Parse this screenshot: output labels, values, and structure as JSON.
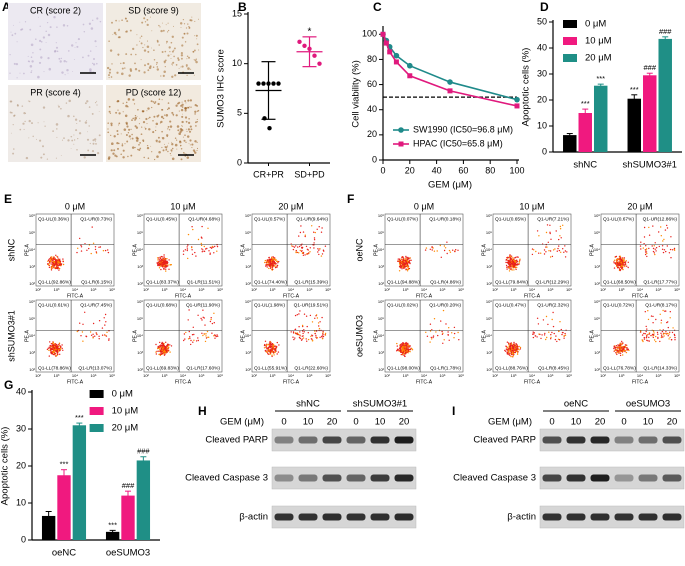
{
  "ihc": {
    "panel": "A",
    "tiles": [
      "CR (score 2)",
      "SD (score 9)",
      "PR (score 4)",
      "PD (score 12)"
    ]
  },
  "chart_data": [
    {
      "panel": "B",
      "type": "dotplot",
      "ylabel": "SUMO3 IHC score",
      "categories": [
        "CR+PR",
        "SD+PD"
      ],
      "colors": [
        "#000000",
        "#e0197d"
      ],
      "points": [
        [
          8,
          8,
          8,
          8,
          8,
          4.5,
          3.5
        ],
        [
          12.2,
          11.8,
          11.5,
          10.8,
          10
        ]
      ],
      "mean": [
        7.3,
        11.2
      ],
      "sd": [
        2.9,
        1.5
      ],
      "annotations": [
        null,
        "*"
      ],
      "ylim": [
        0,
        15
      ],
      "yticks": [
        0,
        5,
        10,
        15
      ]
    },
    {
      "panel": "C",
      "type": "line",
      "xlabel": "GEM (μM)",
      "ylabel": "Cell viability (%)",
      "x": [
        0,
        2.5,
        5,
        10,
        20,
        50,
        100
      ],
      "series": [
        {
          "name": "SW1990 (IC50=96.8 μM)",
          "color": "#1f8a8a",
          "marker": "circle",
          "values": [
            100,
            95,
            90,
            83,
            75,
            62,
            48
          ]
        },
        {
          "name": "HPAC (IC50=65.8 μM)",
          "color": "#e0197d",
          "marker": "square",
          "values": [
            100,
            93,
            86,
            78,
            67,
            55,
            43
          ]
        }
      ],
      "reference_line": 50,
      "xlim": [
        0,
        100
      ],
      "xticks": [
        0,
        20,
        40,
        60,
        80,
        100
      ],
      "ylim": [
        0,
        105
      ],
      "yticks": [
        0,
        20,
        40,
        60,
        80,
        100
      ],
      "legend": "lower center"
    },
    {
      "panel": "D",
      "type": "bar",
      "ylabel": "Apoptotic cells (%)",
      "categories": [
        "shNC",
        "shSUMO3#1"
      ],
      "series": [
        {
          "name": "0 μM",
          "color": "#000000",
          "values": [
            6.5,
            20.5
          ],
          "errors": [
            0.6,
            1.5
          ],
          "annotations": [
            null,
            "***"
          ]
        },
        {
          "name": "10 μM",
          "color": "#f0197f",
          "values": [
            15,
            29.5
          ],
          "errors": [
            1.5,
            0.8
          ],
          "annotations": [
            "***",
            "###"
          ]
        },
        {
          "name": "20 μM",
          "color": "#1f8f86",
          "values": [
            25.5,
            43.5
          ],
          "errors": [
            0.6,
            0.8
          ],
          "annotations": [
            "***",
            "###"
          ]
        }
      ],
      "ylim": [
        0,
        50
      ],
      "yticks": [
        0,
        10,
        20,
        30,
        40,
        50
      ],
      "legend": "upper left"
    },
    {
      "panel": "G",
      "type": "bar",
      "ylabel": "Apoptotic cells (%)",
      "categories": [
        "oeNC",
        "oeSUMO3"
      ],
      "series": [
        {
          "name": "0 μM",
          "color": "#000000",
          "values": [
            6.5,
            2.2
          ],
          "errors": [
            1.2,
            0.4
          ],
          "annotations": [
            null,
            "***"
          ]
        },
        {
          "name": "10 μM",
          "color": "#f0197f",
          "values": [
            17.5,
            12
          ],
          "errors": [
            1.5,
            1.2
          ],
          "annotations": [
            "***",
            "###"
          ]
        },
        {
          "name": "20 μM",
          "color": "#1f8f86",
          "values": [
            31,
            21.5
          ],
          "errors": [
            0.6,
            1
          ],
          "annotations": [
            "***",
            "###"
          ]
        }
      ],
      "ylim": [
        0,
        40
      ],
      "yticks": [
        0,
        10,
        20,
        30,
        40
      ],
      "legend": "upper right"
    }
  ],
  "flow": [
    {
      "panel": "E",
      "row_labels": [
        "shNC",
        "shSUMO3#1"
      ],
      "col_labels": [
        "0 μM",
        "10 μM",
        "20 μM"
      ],
      "x_axis": "FITC-A",
      "y_axis": "PE-A",
      "ticks": [
        "10²",
        "10³",
        "10⁴",
        "10⁵",
        "10⁶"
      ],
      "plots": [
        [
          {
            "ul": "Q1-UL(0.36%)",
            "ur": "Q1-UR(0.73%)",
            "ll": "Q1-LL(92.86%)",
            "lr": "Q1-LR(6.15%)"
          },
          {
            "ul": "Q1-UL(0.45%)",
            "ur": "Q1-UR(4.68%)",
            "ll": "Q1-LL(83.37%)",
            "lr": "Q1-LR(11.51%)"
          },
          {
            "ul": "Q1-UL(0.57%)",
            "ur": "Q1-UR(9.64%)",
            "ll": "Q1-LL(74.40%)",
            "lr": "Q1-LR(15.39%)"
          }
        ],
        [
          {
            "ul": "Q1-UL(0.61%)",
            "ur": "Q1-UR(7.45%)",
            "ll": "Q1-LL(78.86%)",
            "lr": "Q1-LR(13.07%)"
          },
          {
            "ul": "Q1-UL(0.68%)",
            "ur": "Q1-UR(11.90%)",
            "ll": "Q1-LL(69.83%)",
            "lr": "Q1-LR(17.60%)"
          },
          {
            "ul": "Q1-UL(1.98%)",
            "ur": "Q1-UR(19.51%)",
            "ll": "Q1-LL(55.91%)",
            "lr": "Q1-LR(22.60%)"
          }
        ]
      ]
    },
    {
      "panel": "F",
      "row_labels": [
        "oeNC",
        "oeSUMO3"
      ],
      "col_labels": [
        "0 μM",
        "10 μM",
        "20 μM"
      ],
      "x_axis": "FITC-A",
      "y_axis": "PE-A",
      "ticks": [
        "10²",
        "10³",
        "10⁴",
        "10⁵",
        "10⁶"
      ],
      "plots": [
        [
          {
            "ul": "Q1-UL(0.07%)",
            "ur": "Q1-UR(0.18%)",
            "ll": "Q1-LL(94.88%)",
            "lr": "Q1-LR(4.86%)"
          },
          {
            "ul": "Q1-UL(0.65%)",
            "ur": "Q1-UR(7.21%)",
            "ll": "Q1-LL(79.84%)",
            "lr": "Q1-LR(12.29%)"
          },
          {
            "ul": "Q1-UL(0.67%)",
            "ur": "Q1-UR(12.86%)",
            "ll": "Q1-LL(68.50%)",
            "lr": "Q1-LR(17.77%)"
          }
        ],
        [
          {
            "ul": "Q1-UL(0.02%)",
            "ur": "Q1-UR(0.20%)",
            "ll": "Q1-LL(98.00%)",
            "lr": "Q1-LR(1.78%)"
          },
          {
            "ul": "Q1-UL(0.47%)",
            "ur": "Q1-UR(2.32%)",
            "ll": "Q1-LL(88.76%)",
            "lr": "Q1-LR(8.45%)"
          },
          {
            "ul": "Q1-UL(0.72%)",
            "ur": "Q1-UR(8.17%)",
            "ll": "Q1-LL(76.78%)",
            "lr": "Q1-LR(14.33%)"
          }
        ]
      ]
    }
  ],
  "blots": [
    {
      "panel": "H",
      "groups": [
        "shNC",
        "shSUMO3#1"
      ],
      "dose_label": "GEM (μM)",
      "doses": [
        0,
        10,
        20,
        0,
        10,
        20
      ],
      "rows": [
        "Cleaved PARP",
        "Cleaved Caspase 3",
        "β-actin"
      ]
    },
    {
      "panel": "I",
      "groups": [
        "oeNC",
        "oeSUMO3"
      ],
      "dose_label": "GEM (μM)",
      "doses": [
        0,
        10,
        20,
        0,
        10,
        20
      ],
      "rows": [
        "Cleaved PARP",
        "Cleaved Caspase 3",
        "β-actin"
      ]
    }
  ]
}
